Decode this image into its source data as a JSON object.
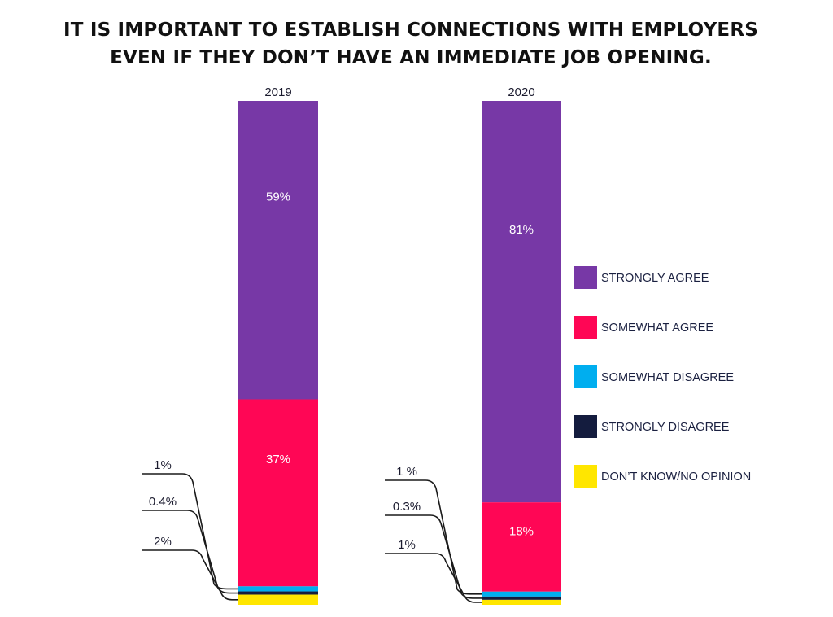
{
  "title_lines": [
    "IT IS IMPORTANT TO ESTABLISH CONNECTIONS WITH EMPLOYERS",
    "EVEN IF THEY DON’T HAVE AN IMMEDIATE JOB OPENING."
  ],
  "chart_data": {
    "type": "bar",
    "stacked": true,
    "orientation": "vertical",
    "title": "IT IS IMPORTANT TO ESTABLISH CONNECTIONS WITH EMPLOYERS EVEN IF THEY DON’T HAVE AN IMMEDIATE JOB OPENING.",
    "categories": [
      "2019",
      "2020"
    ],
    "ylim": [
      0,
      100
    ],
    "grid": false,
    "legend_position": "right",
    "series": [
      {
        "name": "STRONGLY AGREE",
        "color": "#7738a6",
        "values": [
          59,
          81
        ],
        "labels": [
          "59%",
          "81%"
        ]
      },
      {
        "name": "SOMEWHAT AGREE",
        "color": "#ff0655",
        "values": [
          37,
          18
        ],
        "labels": [
          "37%",
          "18%"
        ]
      },
      {
        "name": "SOMEWHAT DISAGREE",
        "color": "#00aeef",
        "values": [
          1,
          1
        ],
        "labels": [
          "1%",
          "1 %"
        ]
      },
      {
        "name": "STRONGLY DISAGREE",
        "color": "#141c3e",
        "values": [
          0.4,
          0.3
        ],
        "labels": [
          "0.4%",
          "0.3%"
        ]
      },
      {
        "name": "DON’T KNOW/NO OPINION",
        "color": "#ffe600",
        "values": [
          2,
          1
        ],
        "labels": [
          "2%",
          "1%"
        ]
      }
    ]
  }
}
